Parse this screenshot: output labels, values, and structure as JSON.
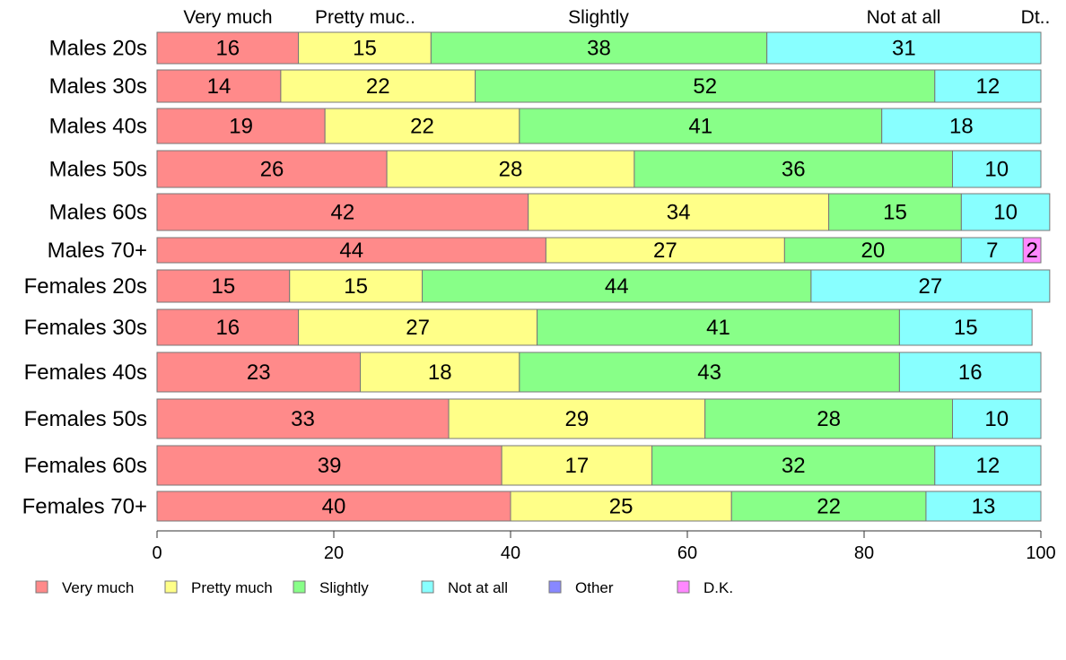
{
  "chart_data": {
    "type": "bar",
    "orientation": "horizontal",
    "stacked": true,
    "xlim": [
      0,
      100
    ],
    "xticks": [
      0,
      20,
      40,
      60,
      80,
      100
    ],
    "top_labels": [
      "Very much",
      "Pretty muc..",
      "Slightly",
      "Not at all",
      "Dt.."
    ],
    "categories": [
      "Males 20s",
      "Males 30s",
      "Males 40s",
      "Males 50s",
      "Males 60s",
      "Males 70+",
      "Females 20s",
      "Females 30s",
      "Females 40s",
      "Females 50s",
      "Females 60s",
      "Females 70+"
    ],
    "series": [
      {
        "name": "Very much",
        "color": "#ff8a8a",
        "values": [
          16,
          14,
          19,
          26,
          42,
          44,
          15,
          16,
          23,
          33,
          39,
          40
        ]
      },
      {
        "name": "Pretty much",
        "color": "#ffff88",
        "values": [
          15,
          22,
          22,
          28,
          34,
          27,
          15,
          27,
          18,
          29,
          17,
          25
        ]
      },
      {
        "name": "Slightly",
        "color": "#88ff88",
        "values": [
          38,
          52,
          41,
          36,
          15,
          20,
          44,
          41,
          43,
          28,
          32,
          22
        ]
      },
      {
        "name": "Not at all",
        "color": "#88ffff",
        "values": [
          31,
          12,
          18,
          10,
          10,
          7,
          27,
          15,
          16,
          10,
          12,
          13
        ]
      },
      {
        "name": "Other",
        "color": "#8888ff",
        "values": [
          0,
          0,
          0,
          0,
          0,
          0,
          0,
          0,
          0,
          0,
          0,
          0
        ]
      },
      {
        "name": "D.K.",
        "color": "#ff88ff",
        "values": [
          0,
          0,
          0,
          0,
          0,
          2,
          0,
          0,
          0,
          0,
          0,
          0
        ]
      }
    ],
    "legend_position": "bottom",
    "grid": false
  }
}
